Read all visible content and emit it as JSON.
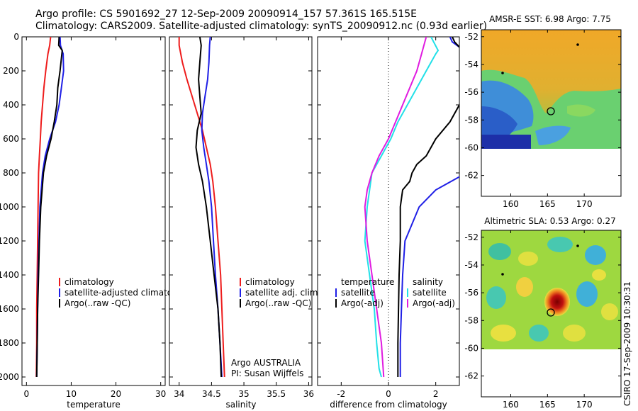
{
  "header": {
    "line1": "Argo profile: CS 5901692_27 12-Sep-2009 20090914_157 57.361S 165.515E",
    "line2": "Climatology: CARS2009. Satellite-adjusted climatology: synTS_20090912.nc (0.93d earlier)"
  },
  "side_label": "CSIRO 17-Sep-2009 10:30:31",
  "colors": {
    "red": "#ee1c1c",
    "blue": "#1f1fe6",
    "black": "#000000",
    "cyan": "#22e0e8",
    "magenta": "#e01ce0"
  },
  "chart_data": [
    {
      "type": "line",
      "xlabel": "temperature",
      "xlim": [
        -1,
        31
      ],
      "ylim": [
        2050,
        0
      ],
      "xticks": [
        0,
        10,
        20,
        30
      ],
      "yticks": [
        0,
        200,
        400,
        600,
        800,
        1000,
        1200,
        1400,
        1600,
        1800,
        2000
      ],
      "legend": [
        "climatology",
        "satellite-adjusted climatology",
        "Argo(..raw -QC)"
      ],
      "series": [
        {
          "name": "climatology",
          "color": "red",
          "x": [
            5.4,
            5.2,
            4.8,
            4.3,
            3.9,
            3.6,
            3.3,
            3.1,
            2.9,
            2.7,
            2.6,
            2.5,
            2.4,
            2.3,
            2.3,
            2.2
          ],
          "y": [
            0,
            50,
            100,
            200,
            300,
            400,
            500,
            600,
            700,
            800,
            1000,
            1200,
            1400,
            1600,
            1800,
            2000
          ]
        },
        {
          "name": "satellite adj. clim.",
          "color": "blue",
          "x": [
            7.5,
            7.6,
            8.2,
            8.3,
            7.8,
            7.3,
            6.5,
            5.2,
            4.2,
            3.6,
            3.0,
            2.8,
            2.6,
            2.5,
            2.4,
            2.3
          ],
          "y": [
            0,
            50,
            100,
            200,
            300,
            400,
            500,
            600,
            700,
            800,
            1000,
            1200,
            1400,
            1600,
            1800,
            2000
          ]
        },
        {
          "name": "Argo",
          "color": "black",
          "x": [
            7.3,
            7.2,
            8.0,
            7.5,
            7.0,
            6.8,
            6.2,
            5.5,
            4.5,
            3.8,
            3.2,
            2.9,
            2.7,
            2.5,
            2.4,
            2.3
          ],
          "y": [
            0,
            50,
            80,
            200,
            300,
            400,
            500,
            600,
            700,
            800,
            1000,
            1200,
            1400,
            1600,
            1800,
            2000
          ]
        }
      ]
    },
    {
      "type": "line",
      "xlabel": "salinity",
      "xlim": [
        33.85,
        36.05
      ],
      "ylim": [
        2050,
        0
      ],
      "xticks": [
        34,
        34.5,
        35,
        35.5,
        36
      ],
      "legend": [
        "climatology",
        "satellite adj. clim.",
        "Argo(..raw -QC)"
      ],
      "annotation": [
        "Argo AUSTRALIA",
        "PI: Susan Wijffels"
      ],
      "series": [
        {
          "name": "climatology",
          "color": "red",
          "x": [
            34.0,
            34.0,
            34.05,
            34.12,
            34.2,
            34.28,
            34.36,
            34.42,
            34.48,
            34.52,
            34.56,
            34.6,
            34.64,
            34.66,
            34.68,
            34.7
          ],
          "y": [
            0,
            50,
            150,
            250,
            350,
            450,
            550,
            650,
            750,
            850,
            1000,
            1200,
            1400,
            1600,
            1800,
            2000
          ]
        },
        {
          "name": "satellite adj. clim.",
          "color": "blue",
          "x": [
            34.48,
            34.47,
            34.46,
            34.44,
            34.4,
            34.36,
            34.35,
            34.38,
            34.42,
            34.46,
            34.5,
            34.53,
            34.56,
            34.6,
            34.63,
            34.66
          ],
          "y": [
            0,
            50,
            150,
            250,
            350,
            450,
            550,
            650,
            750,
            850,
            1000,
            1200,
            1400,
            1600,
            1800,
            2000
          ]
        },
        {
          "name": "Argo",
          "color": "black",
          "x": [
            34.32,
            34.34,
            34.32,
            34.3,
            34.32,
            34.34,
            34.28,
            34.26,
            34.3,
            34.36,
            34.42,
            34.48,
            34.54,
            34.6,
            34.63,
            34.65
          ],
          "y": [
            0,
            50,
            150,
            250,
            350,
            450,
            550,
            650,
            750,
            850,
            1000,
            1200,
            1400,
            1600,
            1800,
            2000
          ]
        }
      ]
    },
    {
      "type": "line",
      "xlabel": "difference from climatology",
      "xlim": [
        -3,
        3
      ],
      "ylim": [
        2050,
        0
      ],
      "xticks": [
        -2,
        0,
        2
      ],
      "legend_left": {
        "title": "temperature",
        "items": [
          "satellite",
          "Argo(-adj)"
        ]
      },
      "legend_right": {
        "title": "salinity",
        "items": [
          "satellite",
          "Argo(-adj)"
        ]
      },
      "series": [
        {
          "name": "temperature satellite",
          "color": "blue",
          "x": [
            2.6,
            2.7,
            3.0,
            3.2,
            3.4,
            3.5,
            3.4,
            3.3,
            3.4,
            3.5,
            3.3,
            2.0,
            1.3,
            1.0,
            0.7,
            0.6,
            0.55,
            0.5,
            0.5
          ],
          "y": [
            0,
            30,
            60,
            100,
            200,
            300,
            400,
            500,
            600,
            700,
            800,
            900,
            1000,
            1100,
            1200,
            1400,
            1600,
            1800,
            2000
          ]
        },
        {
          "name": "temperature Argo(-adj)",
          "color": "black",
          "x": [
            2.7,
            2.8,
            3.0,
            3.2,
            3.3,
            3.2,
            3.0,
            2.6,
            2.0,
            1.6,
            1.2,
            1.0,
            0.9,
            0.6,
            0.5,
            0.5,
            0.45,
            0.4,
            0.4
          ],
          "y": [
            0,
            30,
            60,
            100,
            200,
            300,
            400,
            500,
            600,
            700,
            750,
            800,
            850,
            900,
            1000,
            1200,
            1400,
            1800,
            2000
          ]
        },
        {
          "name": "salinity satellite",
          "color": "cyan",
          "x": [
            1.8,
            2.1,
            2.0,
            1.6,
            1.2,
            0.8,
            0.4,
            0.1,
            -0.3,
            -0.7,
            -0.9,
            -1.0,
            -0.8,
            -0.6,
            -0.5,
            -0.4,
            -0.3
          ],
          "y": [
            0,
            80,
            100,
            200,
            300,
            400,
            500,
            600,
            700,
            800,
            1000,
            1200,
            1400,
            1600,
            1800,
            1950,
            2000
          ]
        },
        {
          "name": "salinity Argo(-adj)",
          "color": "magenta",
          "x": [
            1.6,
            1.4,
            1.2,
            0.9,
            0.6,
            0.3,
            0.0,
            -0.4,
            -0.7,
            -0.9,
            -1.0,
            -0.9,
            -0.7,
            -0.5,
            -0.3,
            -0.2
          ],
          "y": [
            0,
            100,
            200,
            300,
            400,
            500,
            600,
            700,
            800,
            900,
            1000,
            1200,
            1400,
            1600,
            1800,
            2000
          ]
        }
      ]
    },
    {
      "type": "heatmap",
      "title": "AMSR-E SST: 6.98 Argo: 7.75",
      "xticks": [
        160,
        165,
        170
      ],
      "yticks": [
        -52,
        -54,
        -56,
        -58,
        -60,
        -62
      ],
      "xlim": [
        156,
        175
      ],
      "ylim": [
        -63.5,
        -51.5
      ],
      "argo_marker": {
        "lon": 165.5,
        "lat": -57.36
      }
    },
    {
      "type": "heatmap",
      "title": "Altimetric SLA: 0.53 Argo: 0.27",
      "xticks": [
        160,
        165,
        170
      ],
      "yticks": [
        -52,
        -54,
        -56,
        -58,
        -60,
        -62
      ],
      "xlim": [
        156,
        175
      ],
      "ylim": [
        -63.5,
        -51.5
      ],
      "argo_marker": {
        "lon": 165.5,
        "lat": -57.36
      }
    }
  ]
}
